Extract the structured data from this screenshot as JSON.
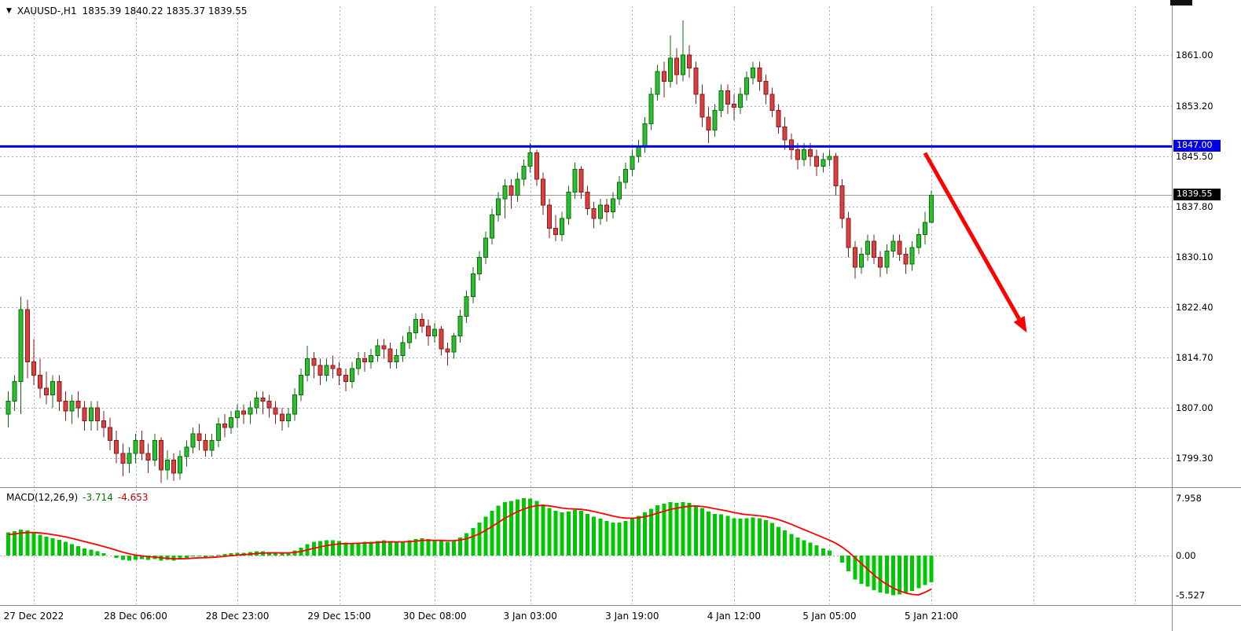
{
  "header": {
    "dropdown_icon": "▼",
    "symbol_timeframe": "XAUUSD-,H1",
    "ohlc_values": "1835.39 1840.22 1835.37 1839.55"
  },
  "macd_header": {
    "name": "MACD(12,26,9)",
    "macd_value": "-3.714",
    "signal_value": "-4.653"
  },
  "chart_data": {
    "type": "candlestick",
    "symbol": "XAUUSD",
    "timeframe": "H1",
    "price_axis": {
      "ticks": [
        "1861.00",
        "1853.20",
        "1845.50",
        "1837.80",
        "1830.10",
        "1822.40",
        "1814.70",
        "1807.00",
        "1799.30"
      ]
    },
    "time_axis": {
      "labels": [
        "27 Dec 2022",
        "28 Dec 06:00",
        "28 Dec 23:00",
        "29 Dec 15:00",
        "30 Dec 08:00",
        "3 Jan 03:00",
        "3 Jan 19:00",
        "4 Jan 12:00",
        "5 Jan 05:00",
        "5 Jan 21:00"
      ],
      "bar_indices": [
        4,
        20,
        36,
        52,
        67,
        82,
        98,
        114,
        129,
        145
      ],
      "future_gridline_indices": [
        161,
        177
      ]
    },
    "current_price": 1839.55,
    "current_price_label": "1839.55",
    "hline": {
      "price": 1847.0,
      "label": "1847.00",
      "color": "#0000e6"
    },
    "trend_arrow": {
      "from_bar": 144,
      "from_price": 1846.0,
      "to_bar": 160,
      "to_price": 1818.5,
      "color": "#ff0000"
    },
    "colors": {
      "bull_fill": "#2fbe2f",
      "bull_stroke": "#0a6f0a",
      "bear_fill": "#d94040",
      "bear_stroke": "#8c1a1a",
      "grid": "#a6abc3",
      "histogram": "#00c800",
      "signal": "#ff0000"
    },
    "candles": [
      [
        1806.0,
        1809.5,
        1804.0,
        1808.0
      ],
      [
        1808.0,
        1812.0,
        1806.5,
        1811.0
      ],
      [
        1811.0,
        1824.0,
        1806.0,
        1822.0
      ],
      [
        1822.0,
        1823.5,
        1811.5,
        1814.0
      ],
      [
        1814.0,
        1817.5,
        1810.5,
        1812.0
      ],
      [
        1812.0,
        1814.5,
        1808.5,
        1810.0
      ],
      [
        1810.0,
        1812.5,
        1807.5,
        1809.0
      ],
      [
        1809.0,
        1812.0,
        1807.0,
        1811.0
      ],
      [
        1811.0,
        1812.0,
        1806.5,
        1808.0
      ],
      [
        1808.0,
        1809.5,
        1805.0,
        1806.5
      ],
      [
        1806.5,
        1809.0,
        1804.5,
        1808.0
      ],
      [
        1808.0,
        1809.5,
        1805.5,
        1807.0
      ],
      [
        1807.0,
        1808.0,
        1803.5,
        1805.0
      ],
      [
        1805.0,
        1808.0,
        1803.5,
        1807.0
      ],
      [
        1807.0,
        1808.0,
        1803.5,
        1805.0
      ],
      [
        1805.0,
        1806.5,
        1802.5,
        1804.0
      ],
      [
        1804.0,
        1805.5,
        1800.5,
        1802.0
      ],
      [
        1802.0,
        1803.5,
        1798.5,
        1800.0
      ],
      [
        1800.0,
        1801.5,
        1796.5,
        1798.5
      ],
      [
        1798.5,
        1801.0,
        1797.0,
        1800.0
      ],
      [
        1800.0,
        1803.0,
        1798.5,
        1802.0
      ],
      [
        1802.0,
        1803.5,
        1799.0,
        1800.0
      ],
      [
        1800.0,
        1801.5,
        1797.0,
        1799.0
      ],
      [
        1799.0,
        1803.0,
        1798.0,
        1802.0
      ],
      [
        1802.0,
        1802.5,
        1795.5,
        1797.5
      ],
      [
        1797.5,
        1800.5,
        1796.0,
        1799.0
      ],
      [
        1799.0,
        1800.0,
        1795.8,
        1797.0
      ],
      [
        1797.0,
        1800.5,
        1796.0,
        1799.5
      ],
      [
        1799.5,
        1802.0,
        1798.0,
        1801.0
      ],
      [
        1801.0,
        1804.0,
        1800.0,
        1803.0
      ],
      [
        1803.0,
        1804.5,
        1800.5,
        1802.0
      ],
      [
        1802.0,
        1803.0,
        1799.5,
        1800.5
      ],
      [
        1800.5,
        1803.0,
        1799.5,
        1802.0
      ],
      [
        1802.0,
        1805.5,
        1801.0,
        1804.5
      ],
      [
        1804.5,
        1806.0,
        1802.5,
        1804.0
      ],
      [
        1804.0,
        1806.5,
        1803.0,
        1805.5
      ],
      [
        1805.5,
        1807.5,
        1804.0,
        1806.5
      ],
      [
        1806.5,
        1807.5,
        1804.5,
        1806.0
      ],
      [
        1806.0,
        1808.0,
        1804.5,
        1807.0
      ],
      [
        1807.0,
        1809.5,
        1806.0,
        1808.5
      ],
      [
        1808.5,
        1809.5,
        1806.0,
        1808.0
      ],
      [
        1808.0,
        1809.0,
        1805.5,
        1807.0
      ],
      [
        1807.0,
        1808.0,
        1804.5,
        1806.0
      ],
      [
        1806.0,
        1807.0,
        1803.5,
        1805.0
      ],
      [
        1805.0,
        1807.0,
        1804.0,
        1806.0
      ],
      [
        1806.0,
        1810.0,
        1805.0,
        1809.0
      ],
      [
        1809.0,
        1813.0,
        1808.0,
        1812.0
      ],
      [
        1812.0,
        1816.5,
        1811.0,
        1814.5
      ],
      [
        1814.5,
        1815.5,
        1811.5,
        1813.5
      ],
      [
        1813.5,
        1814.5,
        1810.5,
        1812.0
      ],
      [
        1812.0,
        1814.5,
        1811.0,
        1813.5
      ],
      [
        1813.5,
        1815.0,
        1811.5,
        1813.0
      ],
      [
        1813.0,
        1814.0,
        1810.5,
        1812.0
      ],
      [
        1812.0,
        1813.0,
        1809.5,
        1811.0
      ],
      [
        1811.0,
        1814.0,
        1810.0,
        1813.0
      ],
      [
        1813.0,
        1815.5,
        1812.0,
        1814.5
      ],
      [
        1814.5,
        1815.5,
        1812.5,
        1814.0
      ],
      [
        1814.0,
        1816.0,
        1813.0,
        1815.0
      ],
      [
        1815.0,
        1817.5,
        1814.0,
        1816.5
      ],
      [
        1816.5,
        1817.5,
        1814.5,
        1816.0
      ],
      [
        1816.0,
        1817.0,
        1813.0,
        1814.0
      ],
      [
        1814.0,
        1816.0,
        1813.0,
        1815.0
      ],
      [
        1815.0,
        1818.0,
        1814.0,
        1817.0
      ],
      [
        1817.0,
        1819.5,
        1816.0,
        1818.5
      ],
      [
        1818.5,
        1821.5,
        1817.5,
        1820.5
      ],
      [
        1820.5,
        1821.5,
        1818.5,
        1819.5
      ],
      [
        1819.5,
        1820.5,
        1816.5,
        1818.0
      ],
      [
        1818.0,
        1820.0,
        1817.0,
        1819.0
      ],
      [
        1819.0,
        1819.5,
        1815.0,
        1816.0
      ],
      [
        1816.0,
        1817.0,
        1813.5,
        1815.5
      ],
      [
        1815.5,
        1818.5,
        1814.5,
        1818.0
      ],
      [
        1818.0,
        1822.0,
        1817.0,
        1821.0
      ],
      [
        1821.0,
        1825.0,
        1820.0,
        1824.0
      ],
      [
        1824.0,
        1828.5,
        1823.0,
        1827.5
      ],
      [
        1827.5,
        1831.0,
        1826.5,
        1830.0
      ],
      [
        1830.0,
        1834.0,
        1829.0,
        1833.0
      ],
      [
        1833.0,
        1837.5,
        1832.0,
        1836.5
      ],
      [
        1836.5,
        1840.0,
        1835.5,
        1839.0
      ],
      [
        1839.0,
        1842.0,
        1836.0,
        1841.0
      ],
      [
        1841.0,
        1842.0,
        1837.5,
        1839.5
      ],
      [
        1839.5,
        1843.0,
        1838.5,
        1842.0
      ],
      [
        1842.0,
        1845.0,
        1841.0,
        1844.0
      ],
      [
        1844.0,
        1847.5,
        1843.0,
        1846.0
      ],
      [
        1846.0,
        1846.5,
        1841.0,
        1842.0
      ],
      [
        1842.0,
        1843.0,
        1836.5,
        1838.0
      ],
      [
        1838.0,
        1839.0,
        1833.0,
        1834.5
      ],
      [
        1834.5,
        1836.5,
        1832.5,
        1833.5
      ],
      [
        1833.5,
        1837.0,
        1832.5,
        1836.0
      ],
      [
        1836.0,
        1841.0,
        1835.0,
        1840.0
      ],
      [
        1840.0,
        1844.5,
        1839.0,
        1843.5
      ],
      [
        1843.5,
        1844.0,
        1839.0,
        1840.0
      ],
      [
        1840.0,
        1841.0,
        1836.5,
        1837.5
      ],
      [
        1837.5,
        1838.5,
        1834.5,
        1836.0
      ],
      [
        1836.0,
        1839.0,
        1835.0,
        1838.0
      ],
      [
        1838.0,
        1839.0,
        1835.5,
        1837.0
      ],
      [
        1837.0,
        1840.0,
        1836.0,
        1839.0
      ],
      [
        1839.0,
        1842.5,
        1838.0,
        1841.5
      ],
      [
        1841.5,
        1844.5,
        1840.5,
        1843.5
      ],
      [
        1843.5,
        1846.5,
        1842.5,
        1845.5
      ],
      [
        1845.5,
        1848.0,
        1844.5,
        1847.0
      ],
      [
        1847.0,
        1851.5,
        1846.0,
        1850.5
      ],
      [
        1850.5,
        1856.0,
        1849.5,
        1855.0
      ],
      [
        1855.0,
        1859.5,
        1854.0,
        1858.5
      ],
      [
        1858.5,
        1860.0,
        1854.5,
        1857.0
      ],
      [
        1857.0,
        1864.0,
        1856.0,
        1860.5
      ],
      [
        1860.5,
        1862.0,
        1856.5,
        1858.0
      ],
      [
        1858.0,
        1866.3,
        1857.0,
        1861.0
      ],
      [
        1861.0,
        1862.5,
        1857.5,
        1859.0
      ],
      [
        1859.0,
        1860.0,
        1853.5,
        1855.0
      ],
      [
        1855.0,
        1856.5,
        1850.0,
        1851.5
      ],
      [
        1851.5,
        1853.0,
        1847.5,
        1849.5
      ],
      [
        1849.5,
        1853.5,
        1848.5,
        1852.5
      ],
      [
        1852.5,
        1856.5,
        1851.5,
        1855.5
      ],
      [
        1855.5,
        1856.5,
        1852.0,
        1853.5
      ],
      [
        1853.5,
        1855.0,
        1851.0,
        1853.0
      ],
      [
        1853.0,
        1856.0,
        1852.0,
        1855.0
      ],
      [
        1855.0,
        1858.5,
        1854.0,
        1857.5
      ],
      [
        1857.5,
        1860.0,
        1856.5,
        1859.0
      ],
      [
        1859.0,
        1860.0,
        1855.5,
        1857.0
      ],
      [
        1857.0,
        1858.0,
        1853.5,
        1855.0
      ],
      [
        1855.0,
        1856.0,
        1851.5,
        1852.5
      ],
      [
        1852.5,
        1853.5,
        1849.0,
        1850.0
      ],
      [
        1850.0,
        1851.5,
        1846.5,
        1848.0
      ],
      [
        1848.0,
        1849.0,
        1845.0,
        1846.5
      ],
      [
        1846.5,
        1847.5,
        1843.5,
        1845.0
      ],
      [
        1845.0,
        1847.5,
        1844.0,
        1846.5
      ],
      [
        1846.5,
        1847.5,
        1844.0,
        1845.5
      ],
      [
        1845.5,
        1846.5,
        1842.5,
        1844.0
      ],
      [
        1844.0,
        1846.0,
        1843.0,
        1845.0
      ],
      [
        1845.0,
        1846.5,
        1844.0,
        1845.5
      ],
      [
        1845.5,
        1846.0,
        1839.5,
        1841.0
      ],
      [
        1841.0,
        1842.0,
        1834.5,
        1836.0
      ],
      [
        1836.0,
        1837.0,
        1830.0,
        1831.5
      ],
      [
        1831.5,
        1832.5,
        1826.8,
        1828.5
      ],
      [
        1828.5,
        1831.5,
        1827.5,
        1830.5
      ],
      [
        1830.5,
        1833.5,
        1829.5,
        1832.5
      ],
      [
        1832.5,
        1833.5,
        1829.0,
        1830.0
      ],
      [
        1830.0,
        1831.0,
        1827.0,
        1828.5
      ],
      [
        1828.5,
        1832.0,
        1827.5,
        1831.0
      ],
      [
        1831.0,
        1833.5,
        1830.0,
        1832.5
      ],
      [
        1832.5,
        1833.5,
        1829.5,
        1830.5
      ],
      [
        1830.5,
        1831.5,
        1827.5,
        1829.0
      ],
      [
        1829.0,
        1832.5,
        1828.0,
        1831.5
      ],
      [
        1831.5,
        1834.5,
        1830.5,
        1833.5
      ],
      [
        1833.5,
        1837.0,
        1832.0,
        1835.4
      ],
      [
        1835.39,
        1840.22,
        1835.37,
        1839.55
      ]
    ],
    "macd": {
      "ticks": [
        "7.958",
        "0.00",
        "-5.527"
      ],
      "histogram": [
        3.2,
        3.4,
        3.6,
        3.5,
        3.2,
        2.9,
        2.6,
        2.4,
        2.2,
        1.9,
        1.6,
        1.3,
        1.0,
        0.8,
        0.6,
        0.3,
        0.0,
        -0.3,
        -0.6,
        -0.7,
        -0.6,
        -0.5,
        -0.6,
        -0.5,
        -0.7,
        -0.6,
        -0.7,
        -0.5,
        -0.3,
        -0.1,
        -0.1,
        -0.2,
        -0.1,
        0.1,
        0.2,
        0.3,
        0.4,
        0.4,
        0.5,
        0.6,
        0.6,
        0.5,
        0.4,
        0.3,
        0.4,
        0.7,
        1.1,
        1.6,
        1.9,
        2.0,
        2.1,
        2.1,
        2.0,
        1.8,
        1.7,
        1.8,
        1.9,
        1.9,
        2.0,
        2.1,
        2.0,
        1.9,
        1.9,
        2.1,
        2.3,
        2.4,
        2.3,
        2.1,
        2.0,
        1.9,
        2.1,
        2.5,
        3.1,
        3.8,
        4.6,
        5.4,
        6.2,
        6.9,
        7.4,
        7.6,
        7.8,
        7.958,
        7.9,
        7.6,
        7.1,
        6.6,
        6.2,
        6.0,
        6.1,
        6.3,
        6.2,
        5.8,
        5.4,
        5.1,
        4.8,
        4.6,
        4.6,
        4.8,
        5.1,
        5.5,
        6.0,
        6.5,
        7.0,
        7.2,
        7.4,
        7.3,
        7.4,
        7.3,
        7.0,
        6.6,
        6.1,
        5.8,
        5.7,
        5.5,
        5.2,
        5.1,
        5.2,
        5.3,
        5.2,
        4.9,
        4.5,
        4.0,
        3.5,
        3.0,
        2.5,
        2.1,
        1.8,
        1.4,
        1.0,
        0.7,
        0.0,
        -1.0,
        -2.2,
        -3.3,
        -3.9,
        -4.3,
        -4.8,
        -5.1,
        -5.3,
        -5.527,
        -5.4,
        -5.2,
        -4.9,
        -4.5,
        -4.1,
        -3.714
      ],
      "signal": [
        2.9,
        3.0,
        3.12,
        3.2,
        3.2,
        3.14,
        3.03,
        2.9,
        2.76,
        2.59,
        2.39,
        2.17,
        1.94,
        1.71,
        1.49,
        1.25,
        1.0,
        0.74,
        0.47,
        0.24,
        0.07,
        -0.04,
        -0.15,
        -0.22,
        -0.32,
        -0.38,
        -0.44,
        -0.45,
        -0.42,
        -0.36,
        -0.31,
        -0.29,
        -0.25,
        -0.18,
        -0.1,
        -0.02,
        0.06,
        0.13,
        0.2,
        0.28,
        0.34,
        0.37,
        0.38,
        0.36,
        0.37,
        0.44,
        0.57,
        0.78,
        1.0,
        1.2,
        1.38,
        1.52,
        1.62,
        1.66,
        1.67,
        1.7,
        1.74,
        1.77,
        1.82,
        1.88,
        1.9,
        1.9,
        1.9,
        1.94,
        2.01,
        2.09,
        2.13,
        2.12,
        2.1,
        2.06,
        2.07,
        2.16,
        2.35,
        2.64,
        3.03,
        3.5,
        4.04,
        4.61,
        5.17,
        5.66,
        6.09,
        6.46,
        6.75,
        6.92,
        6.96,
        6.89,
        6.75,
        6.6,
        6.5,
        6.46,
        6.41,
        6.29,
        6.11,
        5.91,
        5.69,
        5.47,
        5.3,
        5.2,
        5.18,
        5.24,
        5.39,
        5.61,
        5.89,
        6.15,
        6.4,
        6.58,
        6.74,
        6.85,
        6.88,
        6.82,
        6.68,
        6.5,
        6.34,
        6.17,
        5.98,
        5.8,
        5.68,
        5.6,
        5.52,
        5.4,
        5.22,
        4.98,
        4.68,
        4.34,
        3.97,
        3.6,
        3.24,
        2.87,
        2.5,
        2.14,
        1.71,
        1.17,
        0.5,
        -0.3,
        -1.1,
        -1.9,
        -2.7,
        -3.4,
        -4.0,
        -4.5,
        -4.9,
        -5.2,
        -5.4,
        -5.45,
        -5.1,
        -4.653
      ]
    }
  }
}
